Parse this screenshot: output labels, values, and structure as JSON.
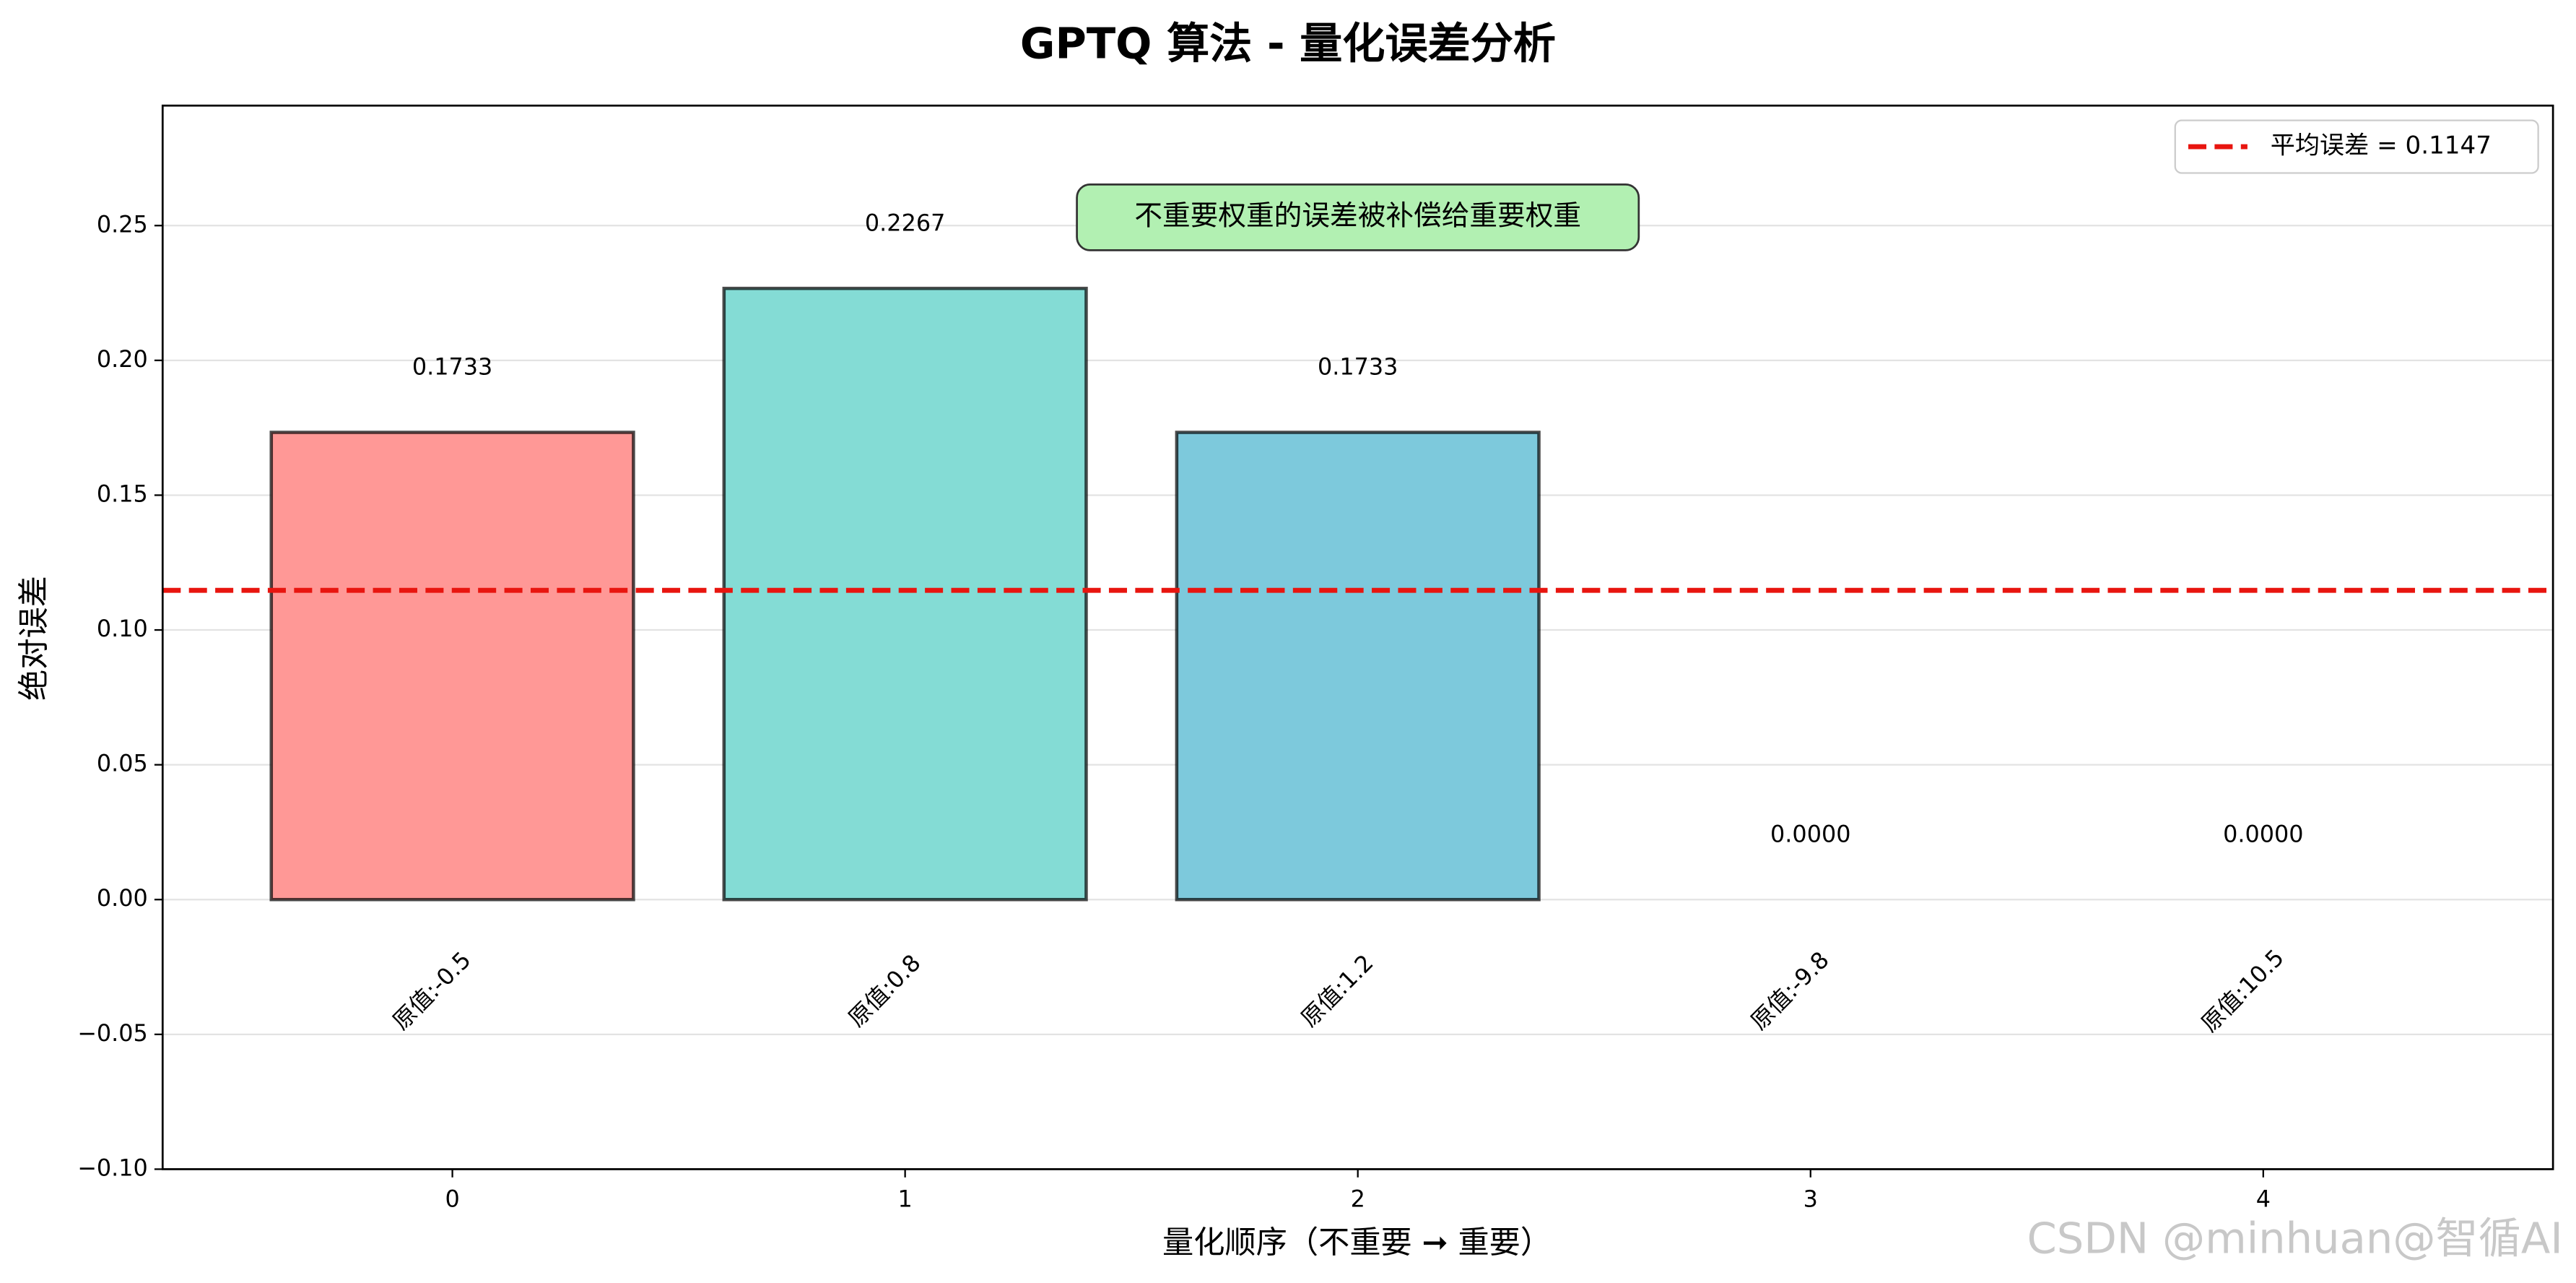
{
  "chart_data": {
    "type": "bar",
    "title": "GPTQ 算法 - 量化误差分析",
    "x_label": "量化顺序（不重要 ➞ 重要）",
    "y_label": "绝对误差",
    "categories": [
      "0",
      "1",
      "2",
      "3",
      "4"
    ],
    "values": [
      0.1733,
      0.2267,
      0.1733,
      0,
      0
    ],
    "value_labels": [
      "0.1733",
      "0.2267",
      "0.1733",
      "0.0000",
      "0.0000"
    ],
    "colors": [
      "#ff9896",
      "#84dcd5",
      "#7dc9dc",
      "#b6dec9",
      "#ffefc1"
    ],
    "bar_labels": [
      "原值:-0.5",
      "原值:0.8",
      "原值:1.2",
      "原值:-9.8",
      "原值:10.5"
    ],
    "xlim": [
      -0.64,
      4.64
    ],
    "ylim": [
      -0.1,
      0.2945
    ],
    "yticks": [
      {
        "value": -0.1,
        "label": "−0.10"
      },
      {
        "value": -0.05,
        "label": "−0.05"
      },
      {
        "value": 0,
        "label": "0.00"
      },
      {
        "value": 0.05,
        "label": "0.05"
      },
      {
        "value": 0.1,
        "label": "0.10"
      },
      {
        "value": 0.15,
        "label": "0.15"
      },
      {
        "value": 0.2,
        "label": "0.20"
      },
      {
        "value": 0.25,
        "label": "0.25"
      }
    ],
    "grid": true,
    "mean_line": {
      "value": 0.1147,
      "label": "平均误差 = 0.1147",
      "color": "#e8150f"
    },
    "legend": "upper right",
    "annotation": "不重要权重的误差被补偿给重要权重",
    "watermark": "CSDN @minhuan@智循AI"
  }
}
